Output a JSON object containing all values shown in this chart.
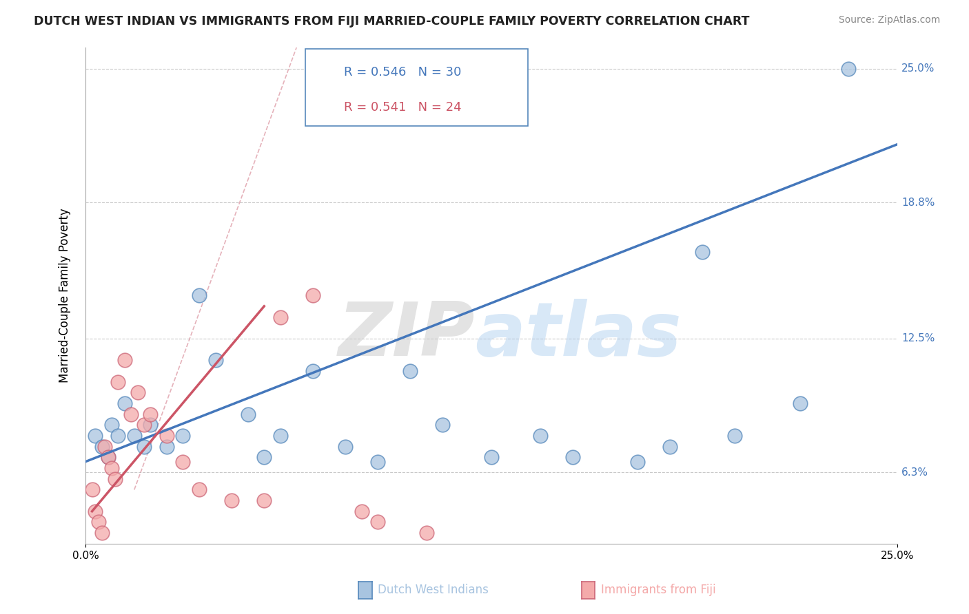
{
  "title": "DUTCH WEST INDIAN VS IMMIGRANTS FROM FIJI MARRIED-COUPLE FAMILY POVERTY CORRELATION CHART",
  "source": "Source: ZipAtlas.com",
  "ylabel": "Married-Couple Family Poverty",
  "xlim": [
    0,
    25.0
  ],
  "ylim": [
    3.0,
    26.0
  ],
  "ytick_labels": [
    "6.3%",
    "12.5%",
    "18.8%",
    "25.0%"
  ],
  "ytick_positions": [
    6.3,
    12.5,
    18.8,
    25.0
  ],
  "legend_label1": "Dutch West Indians",
  "legend_label2": "Immigrants from Fiji",
  "R1": "0.546",
  "N1": "30",
  "R2": "0.541",
  "N2": "24",
  "watermark_zip": "ZIP",
  "watermark_atlas": "atlas",
  "blue_color": "#A8C4E0",
  "pink_color": "#F4AAAA",
  "blue_edge_color": "#5588BB",
  "pink_edge_color": "#CC6677",
  "blue_line_color": "#4477BB",
  "pink_line_color": "#CC5566",
  "blue_scatter_x": [
    0.3,
    0.5,
    0.7,
    0.8,
    1.0,
    1.2,
    1.5,
    1.8,
    2.0,
    2.5,
    3.0,
    3.5,
    4.0,
    5.0,
    5.5,
    6.0,
    7.0,
    8.0,
    9.0,
    10.0,
    11.0,
    12.5,
    14.0,
    15.0,
    17.0,
    18.0,
    19.0,
    20.0,
    22.0,
    23.5
  ],
  "blue_scatter_y": [
    8.0,
    7.5,
    7.0,
    8.5,
    8.0,
    9.5,
    8.0,
    7.5,
    8.5,
    7.5,
    8.0,
    14.5,
    11.5,
    9.0,
    7.0,
    8.0,
    11.0,
    7.5,
    6.8,
    11.0,
    8.5,
    7.0,
    8.0,
    7.0,
    6.8,
    7.5,
    16.5,
    8.0,
    9.5,
    25.0
  ],
  "pink_scatter_x": [
    0.2,
    0.3,
    0.4,
    0.5,
    0.6,
    0.7,
    0.8,
    0.9,
    1.0,
    1.2,
    1.4,
    1.6,
    1.8,
    2.0,
    2.5,
    3.0,
    3.5,
    4.5,
    5.5,
    6.0,
    7.0,
    8.5,
    9.0,
    10.5
  ],
  "pink_scatter_y": [
    5.5,
    4.5,
    4.0,
    3.5,
    7.5,
    7.0,
    6.5,
    6.0,
    10.5,
    11.5,
    9.0,
    10.0,
    8.5,
    9.0,
    8.0,
    6.8,
    5.5,
    5.0,
    5.0,
    13.5,
    14.5,
    4.5,
    4.0,
    3.5
  ],
  "blue_line_x0": 0.0,
  "blue_line_y0": 6.8,
  "blue_line_x1": 25.0,
  "blue_line_y1": 21.5,
  "pink_line_x0": 0.2,
  "pink_line_y0": 4.5,
  "pink_line_x1": 5.5,
  "pink_line_y1": 14.0,
  "dashed_line_x0": 1.5,
  "dashed_line_y0": 5.5,
  "dashed_line_x1": 6.5,
  "dashed_line_y1": 26.0,
  "background_color": "#FFFFFF",
  "grid_color": "#BBBBBB"
}
